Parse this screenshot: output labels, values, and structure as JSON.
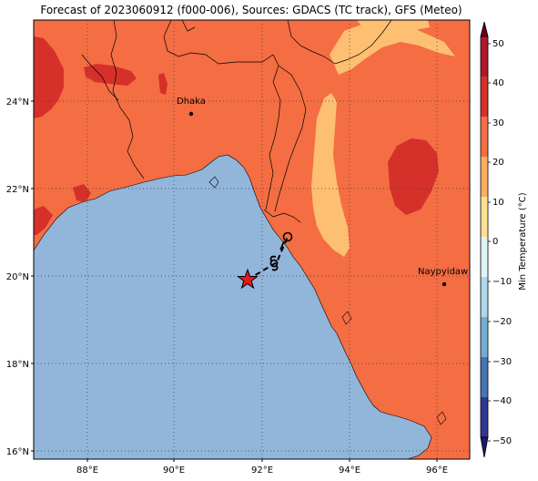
{
  "title": "Forecast of 2023060912 (f000-006), Sources: GDACS (TC track), GFS (Meteo)",
  "map": {
    "lon_ticks": [
      "88°E",
      "90°E",
      "92°E",
      "94°E",
      "96°E"
    ],
    "lat_ticks": [
      "24°N",
      "22°N",
      "20°N",
      "18°N",
      "16°N"
    ],
    "cities": [
      {
        "name": "Dhaka",
        "lon": 90.4,
        "lat": 23.7
      },
      {
        "name": "Naypyidaw",
        "lon": 96.2,
        "lat": 19.8
      }
    ],
    "storm_track": [
      {
        "lon": 91.7,
        "lat": 19.9,
        "marker": "red-star"
      },
      {
        "lon": 92.3,
        "lat": 20.3,
        "marker": "cyclone-symbol"
      },
      {
        "lon": 92.6,
        "lat": 20.9,
        "marker": "open-circle"
      }
    ]
  },
  "colorbar": {
    "label": "Min Temperature (°C)",
    "ticks": [
      "50",
      "40",
      "30",
      "20",
      "10",
      "0",
      "−10",
      "−20",
      "−30",
      "−40",
      "−50"
    ],
    "colors": [
      "#67001f",
      "#b2182b",
      "#d6302a",
      "#f46d43",
      "#fdae61",
      "#fee090",
      "#e0f3f8",
      "#abd9e9",
      "#74add1",
      "#4575b4",
      "#313695",
      "#1a1a6e"
    ]
  },
  "colors": {
    "land_main": "#f46d43",
    "land_hot": "#d6302a",
    "land_cool": "#fdbf71",
    "sea": "#92b6da"
  }
}
